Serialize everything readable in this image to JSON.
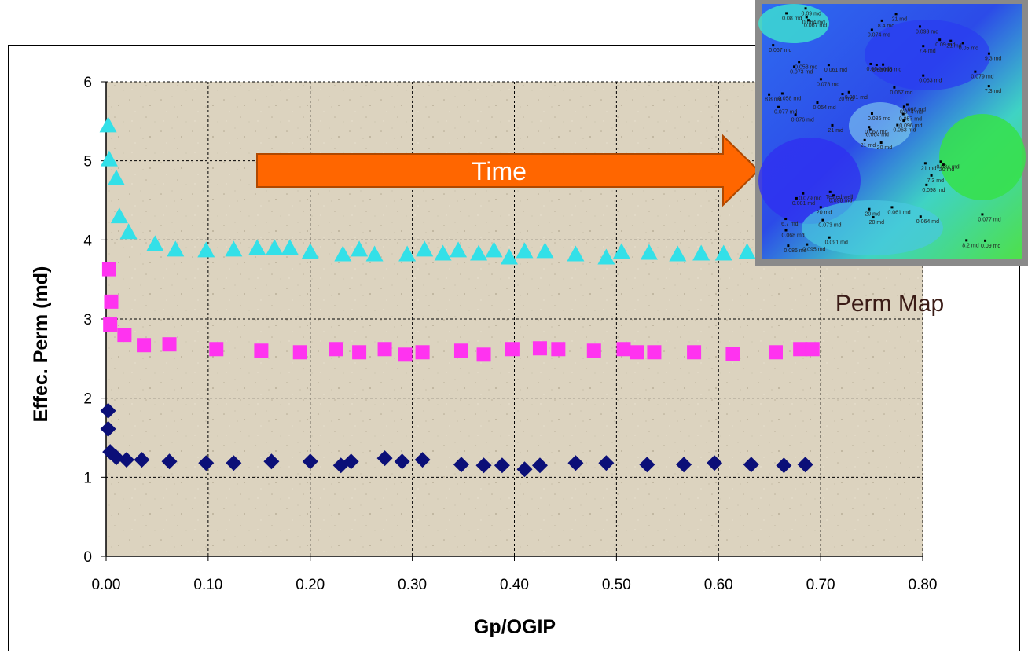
{
  "chart_data": {
    "type": "scatter",
    "title": "",
    "xlabel": "Gp/OGIP",
    "ylabel": "Effec. Perm (md)",
    "xlim": [
      0,
      0.8
    ],
    "ylim": [
      0,
      6
    ],
    "x_ticks": [
      "0.00",
      "0.10",
      "0.20",
      "0.30",
      "0.40",
      "0.50",
      "0.60",
      "0.70",
      "0.80"
    ],
    "y_ticks": [
      "0",
      "1",
      "2",
      "3",
      "4",
      "5",
      "6"
    ],
    "grid": true,
    "series": [
      {
        "marker": "triangle",
        "color": "#33e0e8",
        "points": [
          [
            0.002,
            5.45
          ],
          [
            0.003,
            5.02
          ],
          [
            0.01,
            4.78
          ],
          [
            0.013,
            4.3
          ],
          [
            0.022,
            4.1
          ],
          [
            0.048,
            3.95
          ],
          [
            0.068,
            3.88
          ],
          [
            0.098,
            3.87
          ],
          [
            0.125,
            3.88
          ],
          [
            0.148,
            3.9
          ],
          [
            0.165,
            3.9
          ],
          [
            0.18,
            3.9
          ],
          [
            0.2,
            3.85
          ],
          [
            0.232,
            3.82
          ],
          [
            0.248,
            3.88
          ],
          [
            0.263,
            3.82
          ],
          [
            0.295,
            3.82
          ],
          [
            0.312,
            3.88
          ],
          [
            0.33,
            3.83
          ],
          [
            0.345,
            3.87
          ],
          [
            0.365,
            3.83
          ],
          [
            0.38,
            3.87
          ],
          [
            0.395,
            3.78
          ],
          [
            0.41,
            3.86
          ],
          [
            0.43,
            3.86
          ],
          [
            0.46,
            3.82
          ],
          [
            0.49,
            3.78
          ],
          [
            0.505,
            3.85
          ],
          [
            0.532,
            3.84
          ],
          [
            0.56,
            3.82
          ],
          [
            0.583,
            3.83
          ],
          [
            0.605,
            3.83
          ],
          [
            0.628,
            3.85
          ]
        ]
      },
      {
        "marker": "square",
        "color": "#ff33f0",
        "points": [
          [
            0.003,
            3.63
          ],
          [
            0.005,
            3.22
          ],
          [
            0.004,
            2.93
          ],
          [
            0.018,
            2.8
          ],
          [
            0.037,
            2.67
          ],
          [
            0.062,
            2.68
          ],
          [
            0.108,
            2.62
          ],
          [
            0.152,
            2.6
          ],
          [
            0.19,
            2.58
          ],
          [
            0.225,
            2.62
          ],
          [
            0.248,
            2.58
          ],
          [
            0.273,
            2.62
          ],
          [
            0.293,
            2.55
          ],
          [
            0.31,
            2.58
          ],
          [
            0.348,
            2.6
          ],
          [
            0.37,
            2.55
          ],
          [
            0.398,
            2.62
          ],
          [
            0.425,
            2.63
          ],
          [
            0.443,
            2.62
          ],
          [
            0.478,
            2.6
          ],
          [
            0.507,
            2.62
          ],
          [
            0.52,
            2.58
          ],
          [
            0.537,
            2.58
          ],
          [
            0.576,
            2.58
          ],
          [
            0.614,
            2.56
          ],
          [
            0.656,
            2.58
          ],
          [
            0.68,
            2.62
          ],
          [
            0.692,
            2.62
          ]
        ]
      },
      {
        "marker": "diamond",
        "color": "#0b0f78",
        "points": [
          [
            0.002,
            1.84
          ],
          [
            0.002,
            1.61
          ],
          [
            0.004,
            1.32
          ],
          [
            0.01,
            1.25
          ],
          [
            0.02,
            1.22
          ],
          [
            0.035,
            1.22
          ],
          [
            0.062,
            1.2
          ],
          [
            0.098,
            1.18
          ],
          [
            0.125,
            1.18
          ],
          [
            0.162,
            1.2
          ],
          [
            0.2,
            1.2
          ],
          [
            0.23,
            1.15
          ],
          [
            0.24,
            1.2
          ],
          [
            0.273,
            1.24
          ],
          [
            0.29,
            1.2
          ],
          [
            0.31,
            1.22
          ],
          [
            0.348,
            1.16
          ],
          [
            0.37,
            1.15
          ],
          [
            0.388,
            1.15
          ],
          [
            0.41,
            1.1
          ],
          [
            0.425,
            1.15
          ],
          [
            0.46,
            1.18
          ],
          [
            0.49,
            1.18
          ],
          [
            0.53,
            1.16
          ],
          [
            0.566,
            1.16
          ],
          [
            0.596,
            1.18
          ],
          [
            0.632,
            1.16
          ],
          [
            0.664,
            1.15
          ],
          [
            0.685,
            1.16
          ]
        ]
      }
    ]
  },
  "annotations": {
    "arrow_label": "Time",
    "arrow_color": "#ff6600",
    "map_title": "Perm Map"
  },
  "perm_map": {
    "labels": [
      "20 md",
      "0.073 md",
      "0.064 md",
      "6.7 md",
      "0.074 md",
      "0.098 md",
      "0.093 md",
      "0.095 md",
      "7.4 md",
      "0.063 md",
      "0.067 md",
      "0.09 md",
      "0.076 md",
      "9.3 md",
      "21 md",
      "0.063 md",
      "0.095 md",
      "0.064 md",
      "0.067 md",
      "0.079 md",
      "0.091 md",
      "0.068 md",
      "0.073 md",
      "0.05 md",
      "0.068 md",
      "20 md",
      "0.058 md",
      "0.074 md",
      "0.077 md",
      "21 md",
      "7.3 md",
      "0.067 md",
      "20 md",
      "0.086 md",
      "0.061 md",
      "0.09 md",
      "Tested well",
      "8.2 md",
      "0.077 md",
      "0.084 md",
      "21 md",
      "20 md",
      "0.054 md",
      "0.098 md",
      "0.091 md",
      "8.8 md",
      "0.057 md",
      "0.086 md",
      "20 md",
      "0.096 md",
      "0.081 md",
      "0.079 md",
      "0.067 md",
      "7.3 md",
      "0.064 md",
      "20 md",
      "0.064 md",
      "0.08 md",
      "0.061 md",
      "0.05 md",
      "8.4 md",
      "21 md",
      "0.058 md",
      "0.078 md",
      "21 md",
      "0.09 md"
    ]
  }
}
